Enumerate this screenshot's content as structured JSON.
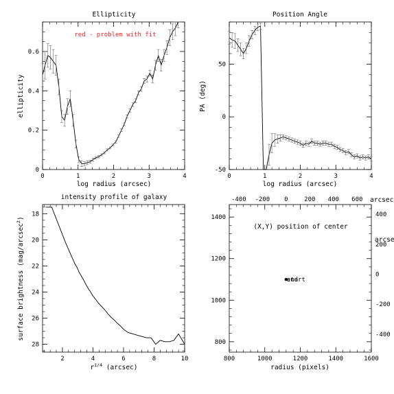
{
  "annotation": {
    "text": "red - problem with fit",
    "color": "#ff2020"
  },
  "chart_data": [
    {
      "type": "line",
      "title": "Ellipticity",
      "xlabel": "log radius (arcsec)",
      "ylabel": "ellipticity",
      "xlim": [
        0,
        4
      ],
      "ylim": [
        0,
        0.75
      ],
      "xticks": [
        0,
        1,
        2,
        3,
        4
      ],
      "yticks": [
        0,
        0.2,
        0.4,
        0.6
      ],
      "grid": false,
      "error_bars": true,
      "series": [
        {
          "x": [
            0.0,
            0.07,
            0.15,
            0.22,
            0.3,
            0.38,
            0.46,
            0.54,
            0.62,
            0.7,
            0.78,
            0.86,
            0.94,
            1.02,
            1.1,
            1.18,
            1.26,
            1.34,
            1.42,
            1.5,
            1.58,
            1.66,
            1.74,
            1.82,
            1.9,
            1.98,
            2.06,
            2.14,
            2.22,
            2.3,
            2.38,
            2.46,
            2.54,
            2.62,
            2.7,
            2.78,
            2.86,
            2.94,
            3.02,
            3.1,
            3.18,
            3.26,
            3.34,
            3.42,
            3.5,
            3.58,
            3.66,
            3.74,
            3.82
          ],
          "y": [
            0.48,
            0.53,
            0.58,
            0.57,
            0.55,
            0.53,
            0.42,
            0.27,
            0.25,
            0.32,
            0.36,
            0.25,
            0.13,
            0.05,
            0.03,
            0.03,
            0.035,
            0.04,
            0.05,
            0.06,
            0.065,
            0.075,
            0.085,
            0.1,
            0.11,
            0.125,
            0.14,
            0.17,
            0.2,
            0.23,
            0.27,
            0.3,
            0.33,
            0.35,
            0.39,
            0.41,
            0.45,
            0.46,
            0.49,
            0.46,
            0.53,
            0.58,
            0.53,
            0.58,
            0.62,
            0.67,
            0.7,
            0.72,
            0.76
          ],
          "err": [
            0.06,
            0.07,
            0.06,
            0.06,
            0.06,
            0.05,
            0.04,
            0.03,
            0.03,
            0.04,
            0.04,
            0.03,
            0.02,
            0.015,
            0.015,
            0.01,
            0.01,
            0.008,
            0.008,
            0.006,
            0.006,
            0.005,
            0.005,
            0.005,
            0.005,
            0.005,
            0.006,
            0.006,
            0.007,
            0.007,
            0.008,
            0.008,
            0.009,
            0.01,
            0.01,
            0.012,
            0.012,
            0.015,
            0.015,
            0.02,
            0.025,
            0.03,
            0.03,
            0.03,
            0.035,
            0.04,
            0.04,
            0.04,
            0.04
          ]
        }
      ]
    },
    {
      "type": "line",
      "title": "Position Angle",
      "xlabel": "log radius (arcsec)",
      "ylabel": "PA (deg)",
      "xlim": [
        0,
        4
      ],
      "ylim": [
        -50,
        90
      ],
      "xticks": [
        0,
        1,
        2,
        3,
        4
      ],
      "yticks": [
        -50,
        0,
        50
      ],
      "grid": false,
      "error_bars": true,
      "series": [
        {
          "x": [
            0.0,
            0.08,
            0.16,
            0.24,
            0.32,
            0.4,
            0.48,
            0.56,
            0.64,
            0.72,
            0.8,
            0.88,
            0.96,
            1.04,
            1.12,
            1.2,
            1.28,
            1.36,
            1.44,
            1.52,
            1.6,
            1.68,
            1.76,
            1.84,
            1.92,
            2.0,
            2.08,
            2.16,
            2.24,
            2.32,
            2.4,
            2.48,
            2.56,
            2.64,
            2.72,
            2.8,
            2.88,
            2.96,
            3.04,
            3.12,
            3.2,
            3.28,
            3.36,
            3.44,
            3.52,
            3.6,
            3.68,
            3.76,
            3.84,
            3.92,
            4.0
          ],
          "y": [
            75,
            73,
            72,
            68,
            64,
            60,
            65,
            72,
            78,
            82,
            85,
            86,
            -60,
            -60,
            -36,
            -25,
            -22,
            -21,
            -20,
            -19,
            -20,
            -21,
            -22,
            -23,
            -24,
            -25,
            -27,
            -25,
            -26,
            -23,
            -25,
            -25,
            -26,
            -25,
            -25,
            -26,
            -26,
            -28,
            -29,
            -31,
            -32,
            -34,
            -33,
            -36,
            -38,
            -37,
            -39,
            -38,
            -39,
            -38,
            -40
          ],
          "err": [
            6,
            7,
            7,
            6,
            6,
            5,
            5,
            5,
            4,
            4,
            3,
            3,
            0,
            0,
            10,
            9,
            6,
            4,
            3,
            2,
            2,
            2,
            2,
            2,
            2,
            2,
            2,
            2,
            2,
            2,
            2,
            2,
            2,
            2,
            2,
            2,
            2,
            2,
            2,
            2,
            2,
            2,
            2,
            2,
            2,
            2,
            2,
            2,
            2,
            2,
            2
          ]
        }
      ]
    },
    {
      "type": "line",
      "title": "intensity profile of galaxy",
      "xlabel": "r^(1/4) (arcsec)",
      "ylabel": "surface brightness (mag/arcsec²)",
      "xlim": [
        0.7,
        10
      ],
      "ylim": [
        17.3,
        28.6
      ],
      "y_inverted": true,
      "xticks": [
        2,
        4,
        6,
        8,
        10
      ],
      "yticks": [
        18,
        20,
        22,
        24,
        26,
        28
      ],
      "grid": false,
      "error_bars": true,
      "series": [
        {
          "x": [
            0.9,
            1.0,
            1.1,
            1.2,
            1.3,
            1.4,
            1.5,
            1.6,
            1.7,
            1.8,
            1.9,
            2.0,
            2.1,
            2.2,
            2.35,
            2.5,
            2.65,
            2.8,
            2.95,
            3.1,
            3.25,
            3.4,
            3.55,
            3.7,
            3.85,
            4.0,
            4.2,
            4.4,
            4.6,
            4.8,
            5.0,
            5.2,
            5.4,
            5.6,
            5.8,
            6.0,
            6.3,
            6.6,
            6.9,
            7.2,
            7.5,
            7.8,
            8.1,
            8.4,
            8.7,
            9.0,
            9.3,
            9.6,
            10.0
          ],
          "y": [
            17.5,
            17.5,
            17.5,
            17.5,
            17.5,
            17.8,
            18.1,
            18.4,
            18.7,
            19.0,
            19.3,
            19.6,
            19.9,
            20.2,
            20.6,
            21.0,
            21.4,
            21.8,
            22.1,
            22.5,
            22.8,
            23.1,
            23.45,
            23.75,
            24.0,
            24.3,
            24.6,
            24.9,
            25.15,
            25.4,
            25.7,
            25.95,
            26.15,
            26.4,
            26.6,
            26.85,
            27.1,
            27.2,
            27.3,
            27.4,
            27.5,
            27.5,
            28.0,
            27.7,
            27.8,
            27.8,
            27.7,
            27.2,
            28.0
          ]
        }
      ]
    },
    {
      "type": "scatter",
      "title": "(X,Y) position of center",
      "xlabel": "radius (pixels)",
      "ylabel": "",
      "xlim": [
        800,
        1600
      ],
      "ylim": [
        750,
        1460
      ],
      "xticks": [
        800,
        1000,
        1200,
        1400,
        1600
      ],
      "yticks": [
        800,
        1000,
        1200,
        1400
      ],
      "top_axis": {
        "lim": [
          -480,
          720
        ],
        "ticks": [
          -400,
          -200,
          0,
          200,
          400,
          600
        ],
        "label": "arcsec"
      },
      "right_axis": {
        "lim": [
          -520,
          465
        ],
        "ticks": [
          -400,
          -200,
          0,
          200,
          400
        ],
        "label": "arcsec"
      },
      "grid": false,
      "points": [
        {
          "x": 1120,
          "y": 1100
        }
      ],
      "point_labels": [
        {
          "x": 1120,
          "y": 1100,
          "text": "start"
        },
        {
          "x": 1120,
          "y": 1100,
          "text": "end"
        }
      ]
    }
  ]
}
